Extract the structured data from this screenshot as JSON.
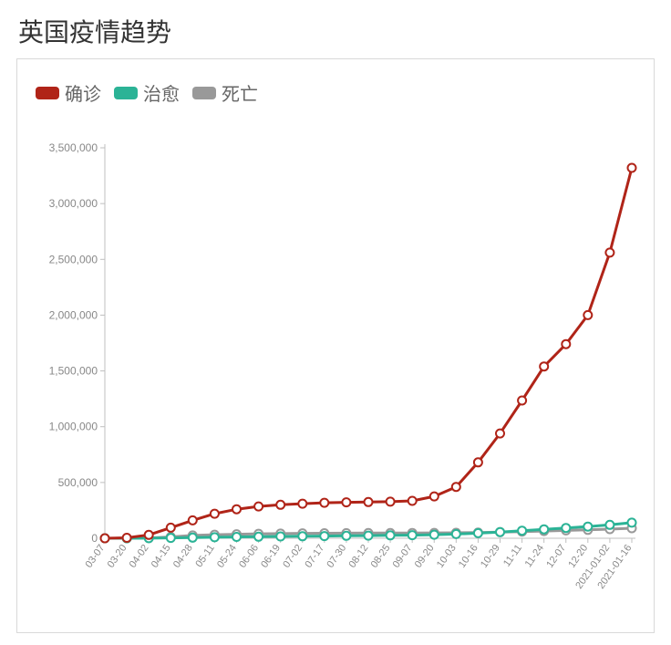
{
  "title": "英国疫情趋势",
  "chart": {
    "type": "line",
    "background_color": "#ffffff",
    "border_color": "#d9d9d9",
    "axis_color": "#bfbfbf",
    "tick_label_color": "#888888",
    "title_fontsize": 28,
    "legend_fontsize": 20,
    "tick_fontsize": 12,
    "line_width": 3,
    "marker_radius": 4.5,
    "marker_fill": "#ffffff",
    "ylim": [
      0,
      3500000
    ],
    "ytick_step": 500000,
    "yticks": [
      "0",
      "500,000",
      "1,000,000",
      "1,500,000",
      "2,000,000",
      "2,500,000",
      "3,000,000",
      "3,500,000"
    ],
    "x_labels": [
      "03-07",
      "03-20",
      "04-02",
      "04-15",
      "04-28",
      "05-11",
      "05-24",
      "06-06",
      "06-19",
      "07-02",
      "07-17",
      "07-30",
      "08-12",
      "08-25",
      "09-07",
      "09-20",
      "10-03",
      "10-16",
      "10-29",
      "11-11",
      "11-24",
      "12-07",
      "12-20",
      "2021-01-02",
      "2021-01-16"
    ],
    "legend": [
      {
        "label": "确诊",
        "color": "#b02418"
      },
      {
        "label": "治愈",
        "color": "#2bb396"
      },
      {
        "label": "死亡",
        "color": "#999999"
      }
    ],
    "series": {
      "confirmed": {
        "label": "确诊",
        "color": "#b02418",
        "values": [
          200,
          4000,
          30000,
          95000,
          160000,
          220000,
          260000,
          285000,
          300000,
          310000,
          318000,
          322000,
          325000,
          328000,
          335000,
          375000,
          460000,
          680000,
          940000,
          1235000,
          1540000,
          1740000,
          2000000,
          2560000,
          3320000
        ]
      },
      "recovered": {
        "label": "治愈",
        "color": "#2bb396",
        "values": [
          10,
          200,
          1000,
          3000,
          6000,
          9000,
          12000,
          14000,
          16000,
          18000,
          20000,
          22000,
          24000,
          26000,
          28000,
          32000,
          38000,
          46000,
          56000,
          68000,
          80000,
          92000,
          105000,
          120000,
          140000
        ]
      },
      "deaths": {
        "label": "死亡",
        "color": "#999999",
        "values": [
          2,
          150,
          2000,
          12000,
          25000,
          32000,
          36000,
          40000,
          42000,
          44000,
          45000,
          46000,
          46500,
          47000,
          47500,
          48000,
          49000,
          51000,
          55000,
          60000,
          65000,
          70000,
          75000,
          82000,
          90000
        ]
      }
    }
  }
}
